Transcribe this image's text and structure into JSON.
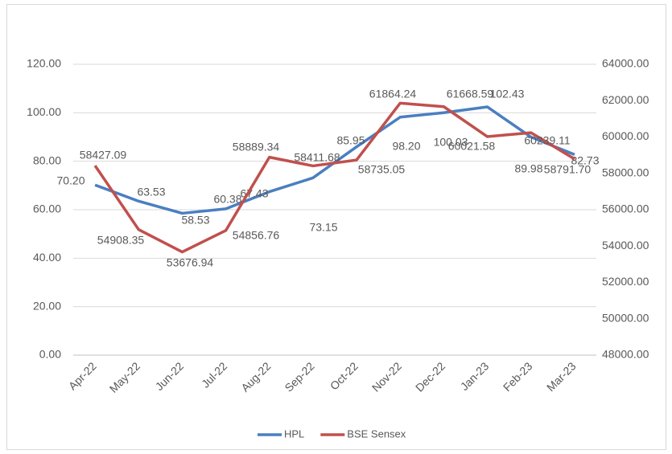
{
  "chart_data": {
    "type": "line",
    "categories": [
      "Apr-22",
      "May-22",
      "Jun-22",
      "Jul-22",
      "Aug-22",
      "Sep-22",
      "Oct-22",
      "Nov-22",
      "Dec-22",
      "Jan-23",
      "Feb-23",
      "Mar-23"
    ],
    "series": [
      {
        "name": "HPL",
        "color": "#4a7fc1",
        "axis": "y",
        "values": [
          70.2,
          63.53,
          58.53,
          60.38,
          67.43,
          73.15,
          85.95,
          98.2,
          100.03,
          102.43,
          89.98,
          82.73
        ],
        "value_labels": [
          "70.20",
          "63.53",
          "58.53",
          "60.38",
          "67.43",
          "73.15",
          "85.95",
          "98.20",
          "100.03",
          "102.43",
          "89.98",
          "82.73"
        ]
      },
      {
        "name": "BSE Sensex",
        "color": "#c0504d",
        "axis": "y2",
        "values": [
          58427.09,
          54908.35,
          53676.94,
          54856.76,
          58889.34,
          58411.68,
          58735.05,
          61864.24,
          61668.59,
          60021.58,
          60239.11,
          58791.7
        ],
        "value_labels": [
          "58427.09",
          "54908.35",
          "53676.94",
          "54856.76",
          "58889.34",
          "58411.68",
          "58735.05",
          "61864.24",
          "61668.59",
          "60021.58",
          "60239.11",
          "58791.70"
        ]
      }
    ],
    "ylim": [
      0,
      120
    ],
    "yticks": [
      {
        "value": 0,
        "label": "0.00"
      },
      {
        "value": 20,
        "label": "20.00"
      },
      {
        "value": 40,
        "label": "40.00"
      },
      {
        "value": 60,
        "label": "60.00"
      },
      {
        "value": 80,
        "label": "80.00"
      },
      {
        "value": 100,
        "label": "100.00"
      },
      {
        "value": 120,
        "label": "120.00"
      }
    ],
    "y2lim": [
      48000,
      64000
    ],
    "y2ticks": [
      {
        "value": 48000,
        "label": "48000.00"
      },
      {
        "value": 50000,
        "label": "50000.00"
      },
      {
        "value": 52000,
        "label": "52000.00"
      },
      {
        "value": 54000,
        "label": "54000.00"
      },
      {
        "value": 56000,
        "label": "56000.00"
      },
      {
        "value": 58000,
        "label": "58000.00"
      },
      {
        "value": 60000,
        "label": "60000.00"
      },
      {
        "value": 62000,
        "label": "62000.00"
      },
      {
        "value": 64000,
        "label": "64000.00"
      }
    ],
    "grid": true,
    "legend": "bottom"
  }
}
